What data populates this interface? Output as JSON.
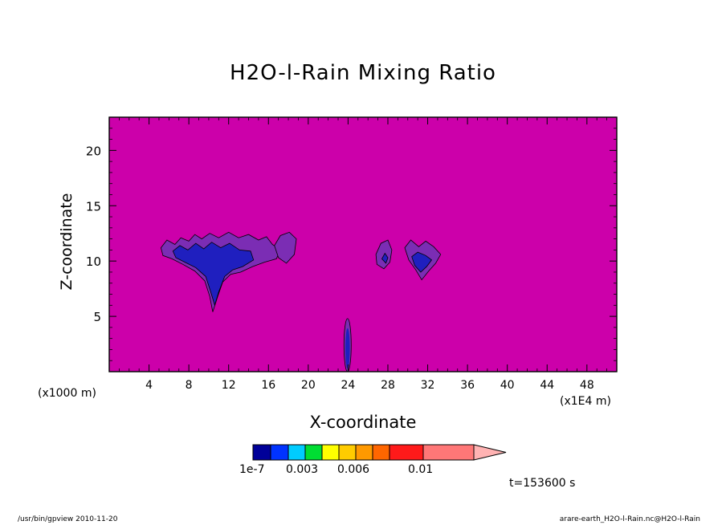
{
  "chart_data": {
    "type": "contour",
    "title": "H2O-l-Rain Mixing Ratio",
    "xlabel": "X-coordinate",
    "ylabel": "Z-coordinate",
    "x_unit_note": "(x1E4 m)",
    "y_unit_note": "(x1000 m)",
    "x_ticks": [
      4,
      8,
      12,
      16,
      20,
      24,
      28,
      32,
      36,
      40,
      44,
      48
    ],
    "y_ticks": [
      5,
      10,
      15,
      20
    ],
    "xlim": [
      0,
      51
    ],
    "ylim": [
      0,
      23
    ],
    "background_value": "below 1e-7",
    "features": [
      {
        "region": "large cloud",
        "x_range": [
          5,
          19
        ],
        "z_range": [
          5.3,
          12.5
        ],
        "max_level": "1e-7 to 0.003"
      },
      {
        "region": "small cloud",
        "x_range": [
          26.7,
          28.3
        ],
        "z_range": [
          9.4,
          11.8
        ],
        "max_level": "1e-7 to 0.003"
      },
      {
        "region": "small cloud",
        "x_range": [
          29.7,
          33.4
        ],
        "z_range": [
          8.3,
          11.7
        ],
        "max_level": "1e-7 to 0.003"
      },
      {
        "region": "near-surface column",
        "x_range": [
          23.6,
          24.3
        ],
        "z_range": [
          0,
          4.8
        ],
        "max_level": "1e-7 to 0.003"
      }
    ],
    "colorbar": {
      "colors": [
        "#000099",
        "#0033ff",
        "#00ccff",
        "#00dd33",
        "#ffff00",
        "#ffcc00",
        "#ff9900",
        "#ff6600",
        "#ff1a1a",
        "#ff7777",
        "#ffb3b3"
      ],
      "tick_labels": [
        "1e-7",
        "0.003",
        "0.006",
        "0.01"
      ],
      "extend": "max"
    },
    "time_label": "t=153600 s"
  },
  "colors": {
    "background_field": "#cc00aa",
    "level1": "#7b2db4",
    "level2": "#1f1fbf",
    "frame": "#000000"
  },
  "footer": {
    "left": "/usr/bin/gpview  2010-11-20",
    "right": "arare-earth_H2O-l-Rain.nc@H2O-l-Rain"
  }
}
